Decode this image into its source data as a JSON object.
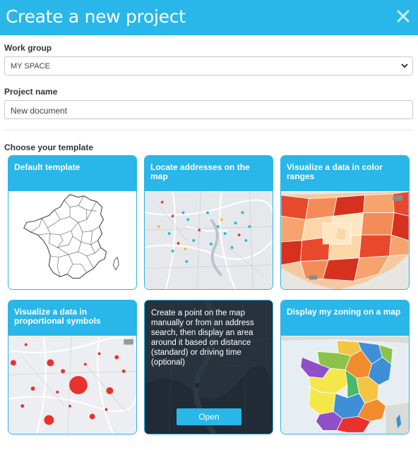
{
  "dialog": {
    "title": "Create a new project",
    "close_icon": "close-icon"
  },
  "form": {
    "work_group_label": "Work group",
    "work_group_value": "MY SPACE",
    "project_name_label": "Project name",
    "project_name_value": "New document",
    "template_label": "Choose your template"
  },
  "templates": [
    {
      "caption": "Default template"
    },
    {
      "caption": "Locate addresses on the map"
    },
    {
      "caption": "Visualize a data in color ranges"
    },
    {
      "caption": "Visualize a data in proportional symbols"
    },
    {
      "description": "Create a point on the map manually or from an address search, then display an area around it based on distance (standard) or driving time (optional)",
      "button": "Open"
    },
    {
      "caption": "Display my zoning on a map"
    }
  ],
  "colors": {
    "accent": "#29b6e8"
  }
}
